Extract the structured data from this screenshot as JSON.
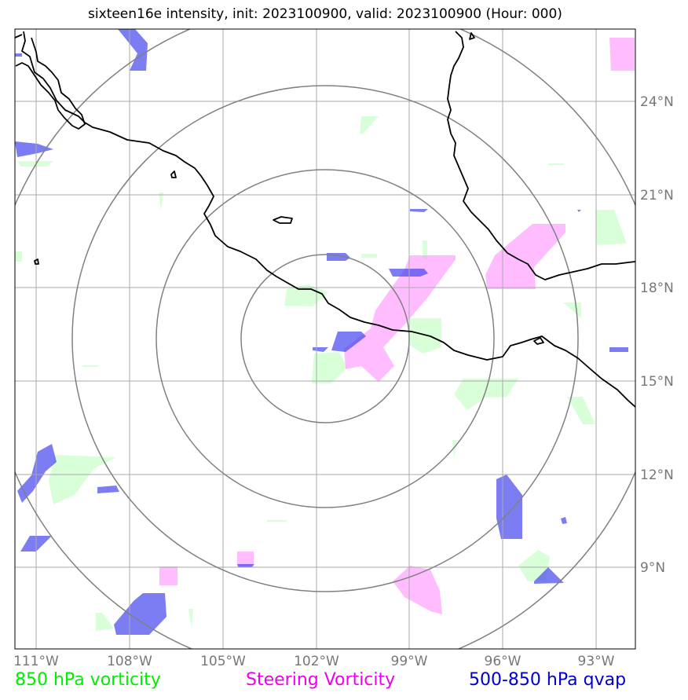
{
  "title": "sixteen16e intensity, init: 2023100900, valid: 2023100900 (Hour: 000)",
  "legend": {
    "left": {
      "label": "850 hPa vorticity",
      "color": "#00ee00"
    },
    "middle": {
      "label": "Steering Vorticity",
      "color": "#ee00ee"
    },
    "right": {
      "label": "500-850 hPa qvap",
      "color": "#0000cc"
    }
  },
  "axes": {
    "lon_labels": [
      "111°W",
      "108°W",
      "105°W",
      "102°W",
      "99°W",
      "96°W",
      "93°W"
    ],
    "lat_labels": [
      "24°N",
      "21°N",
      "18°N",
      "15°N",
      "12°N",
      "9°N"
    ]
  },
  "colors": {
    "vorticity_850": "#c8ffc8",
    "steering_vorticity": "#ff99ff",
    "qvap": "#4444ee",
    "coastline": "#000000",
    "range_rings": "#808080",
    "gridlines": "#aaaaaa"
  }
}
